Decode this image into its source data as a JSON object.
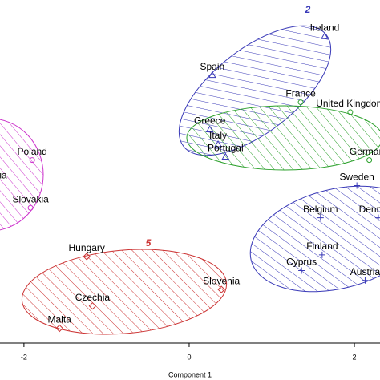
{
  "chart_data": {
    "type": "scatter",
    "x_label": "Component 1",
    "xlim": [
      -2.29,
      2.31
    ],
    "xticks": [
      -2,
      0,
      2
    ],
    "ylim": [
      -1.83,
      2.33
    ],
    "annotations": [
      "2",
      "5"
    ],
    "series": [
      {
        "color": "#3a3ab8",
        "labels": [
          "Ireland",
          "Spain",
          "Greece",
          "Italy",
          "Portugal"
        ],
        "x": [
          1.64,
          0.28,
          0.25,
          0.35,
          0.44
        ],
        "y": [
          1.89,
          1.42,
          0.76,
          0.58,
          0.43
        ]
      },
      {
        "color": "#2aa02a",
        "labels": [
          "France",
          "United Kingdom",
          "Germany"
        ],
        "x": [
          1.35,
          1.95,
          2.18
        ],
        "y": [
          1.09,
          0.97,
          0.39
        ]
      },
      {
        "color": "#cc33cc",
        "labels": [
          "Poland",
          "Estonia",
          "Slovakia"
        ],
        "x": [
          -1.9,
          -2.4,
          -1.92
        ],
        "y": [
          0.39,
          0.1,
          -0.19
        ]
      },
      {
        "color": "#3a3ab8",
        "labels": [
          "Sweden",
          "Belgium",
          "Denmark",
          "Finland",
          "Cyprus",
          "Austria"
        ],
        "x": [
          2.03,
          1.59,
          2.29,
          1.61,
          1.36,
          2.13
        ],
        "y": [
          0.08,
          -0.31,
          -0.31,
          -0.76,
          -0.95,
          -1.07
        ]
      },
      {
        "color": "#cc3333",
        "labels": [
          "Hungary",
          "Slovenia",
          "Czechia",
          "Malta"
        ],
        "x": [
          -1.24,
          0.39,
          -1.17,
          -1.57
        ],
        "y": [
          -0.78,
          -1.18,
          -1.38,
          -1.65
        ]
      }
    ]
  }
}
